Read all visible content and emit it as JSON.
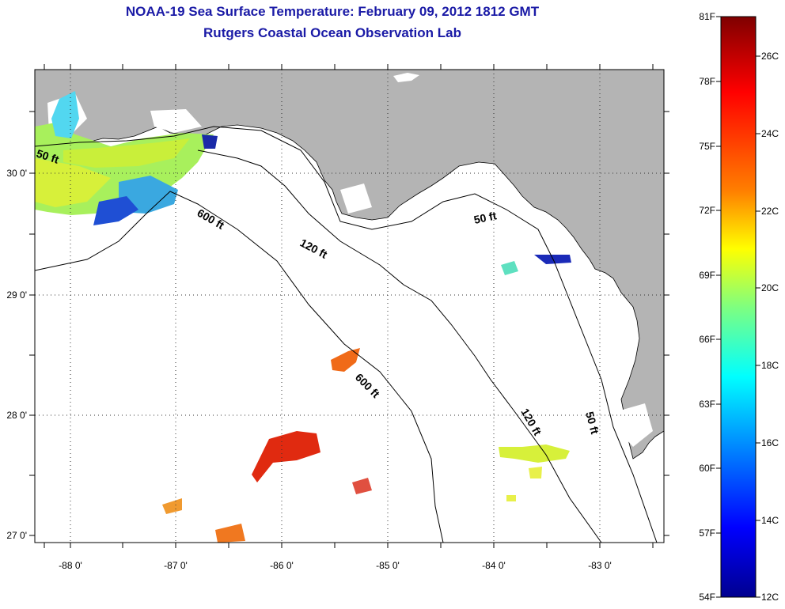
{
  "title": {
    "line1": "NOAA-19 Sea Surface Temperature:  February 09, 2012 1812 GMT",
    "line2": "Rutgers Coastal Ocean Observation Lab"
  },
  "map": {
    "latitude_labels": [
      "30 0'",
      "29 0'",
      "28 0'",
      "27 0'"
    ],
    "longitude_labels": [
      "-88 0'",
      "-87 0'",
      "-86 0'",
      "-85 0'",
      "-84 0'",
      "-83 0'"
    ],
    "contour_labels": [
      "50 ft",
      "600 ft",
      "120 ft",
      "50 ft",
      "600 ft",
      "120 ft",
      "50 ft"
    ],
    "colors": {
      "land": "#b4b4b4",
      "water": "#ffffff",
      "frame": "#000000",
      "grid": "#333333"
    }
  },
  "colorbar": {
    "fahrenheit_labels": [
      "81F",
      "78F",
      "75F",
      "72F",
      "69F",
      "66F",
      "63F",
      "60F",
      "57F",
      "54F"
    ],
    "celsius_labels": [
      "26C",
      "24C",
      "22C",
      "20C",
      "18C",
      "16C",
      "14C",
      "12C"
    ],
    "stops": [
      "#7f0000",
      "#ff0000",
      "#ff7f00",
      "#ffff00",
      "#7fff7f",
      "#00ffff",
      "#007fff",
      "#0000ff",
      "#00008f"
    ]
  }
}
